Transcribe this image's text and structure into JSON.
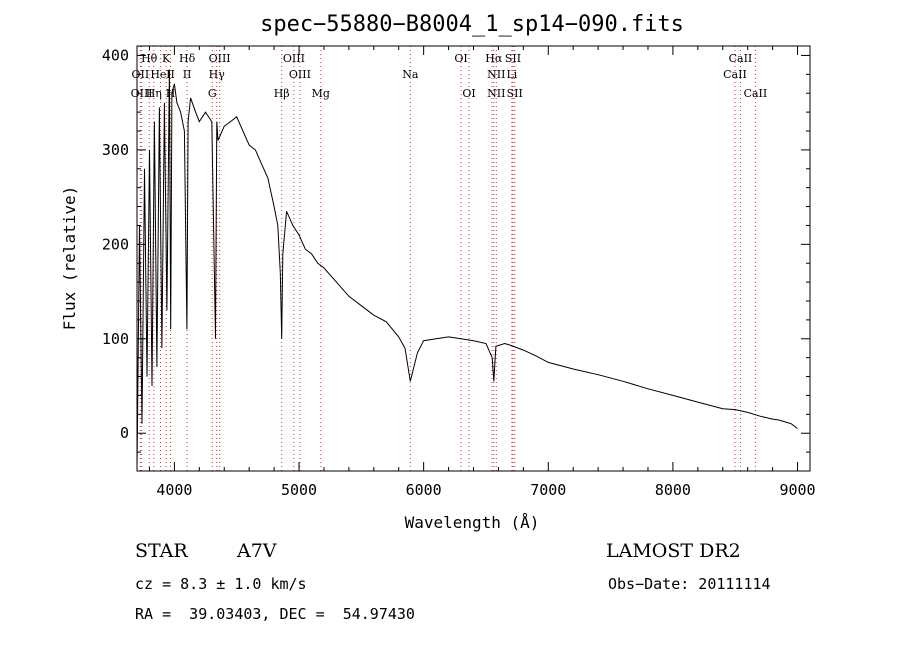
{
  "chart_data": {
    "type": "line",
    "title": "spec−55880−B8004_1_sp14−090.fits",
    "xlabel": "Wavelength (Å)",
    "ylabel": "Flux (relative)",
    "xlim": [
      3700,
      9100
    ],
    "ylim": [
      -40,
      410
    ],
    "x_ticks": [
      4000,
      5000,
      6000,
      7000,
      8000,
      9000
    ],
    "y_ticks": [
      0,
      100,
      200,
      300,
      400
    ],
    "series": [
      {
        "x": [
          3700,
          3720,
          3740,
          3760,
          3780,
          3800,
          3820,
          3840,
          3860,
          3880,
          3900,
          3920,
          3940,
          3960,
          3970,
          3980,
          4000,
          4020,
          4050,
          4080,
          4100,
          4110,
          4130,
          4170,
          4200,
          4250,
          4300,
          4330,
          4340,
          4350,
          4400,
          4450,
          4500,
          4550,
          4600,
          4650,
          4700,
          4750,
          4800,
          4830,
          4850,
          4861,
          4870,
          4900,
          4950,
          5000,
          5050,
          5100,
          5150,
          5200,
          5300,
          5400,
          5500,
          5600,
          5700,
          5800,
          5850,
          5893,
          5950,
          6000,
          6100,
          6200,
          6300,
          6400,
          6500,
          6550,
          6563,
          6580,
          6650,
          6700,
          6800,
          6900,
          7000,
          7200,
          7400,
          7600,
          7800,
          8000,
          8200,
          8400,
          8500,
          8600,
          8700,
          8800,
          8850,
          8900,
          8950,
          9000
        ],
        "y": [
          -40,
          220,
          10,
          280,
          60,
          300,
          50,
          330,
          70,
          345,
          90,
          350,
          130,
          385,
          110,
          360,
          370,
          350,
          340,
          320,
          110,
          330,
          355,
          340,
          330,
          340,
          330,
          100,
          330,
          310,
          325,
          330,
          335,
          320,
          305,
          300,
          285,
          270,
          240,
          220,
          170,
          100,
          190,
          235,
          220,
          210,
          195,
          190,
          180,
          175,
          160,
          145,
          135,
          125,
          118,
          102,
          90,
          55,
          85,
          98,
          100,
          102,
          100,
          98,
          95,
          80,
          55,
          92,
          95,
          93,
          88,
          82,
          75,
          68,
          62,
          55,
          47,
          40,
          33,
          26,
          25,
          22,
          18,
          15,
          14,
          12,
          10,
          5
        ]
      }
    ],
    "annotations": [
      {
        "text": "Hθ",
        "wl": 3798,
        "row": 1
      },
      {
        "text": "OII",
        "wl": 3727,
        "row": 2
      },
      {
        "text": "OIII",
        "wl": 3737,
        "row": 3
      },
      {
        "text": "K",
        "wl": 3934,
        "row": 1
      },
      {
        "text": "HeI",
        "wl": 3889,
        "row": 2
      },
      {
        "text": "Hη",
        "wl": 3835,
        "row": 3
      },
      {
        "text": "II",
        "wl": 3969,
        "row": 2
      },
      {
        "text": "H",
        "wl": 3969,
        "row": 3
      },
      {
        "text": "Hδ",
        "wl": 4102,
        "row": 1
      },
      {
        "text": "II",
        "wl": 4102,
        "row": 2
      },
      {
        "text": "OIII",
        "wl": 4363,
        "row": 1
      },
      {
        "text": "Hγ",
        "wl": 4340,
        "row": 2
      },
      {
        "text": "G",
        "wl": 4304,
        "row": 3
      },
      {
        "text": "Hβ",
        "wl": 4861,
        "row": 3
      },
      {
        "text": "OIII",
        "wl": 4959,
        "row": 1
      },
      {
        "text": "OIII",
        "wl": 5007,
        "row": 2
      },
      {
        "text": "Mg",
        "wl": 5175,
        "row": 3
      },
      {
        "text": "Na",
        "wl": 5893,
        "row": 2
      },
      {
        "text": "OI",
        "wl": 6300,
        "row": 1
      },
      {
        "text": "OI",
        "wl": 6364,
        "row": 3
      },
      {
        "text": "Hα",
        "wl": 6563,
        "row": 1
      },
      {
        "text": "SII",
        "wl": 6717,
        "row": 1
      },
      {
        "text": "NII",
        "wl": 6583,
        "row": 2
      },
      {
        "text": "Li",
        "wl": 6708,
        "row": 2
      },
      {
        "text": "NII",
        "wl": 6583,
        "row": 3
      },
      {
        "text": "SII",
        "wl": 6731,
        "row": 3
      },
      {
        "text": "CaII",
        "wl": 8542,
        "row": 1
      },
      {
        "text": "CaII",
        "wl": 8498,
        "row": 2
      },
      {
        "text": "CaII",
        "wl": 8662,
        "row": 3
      }
    ],
    "line_markers": [
      3727,
      3737,
      3798,
      3835,
      3889,
      3934,
      3969,
      4102,
      4304,
      4340,
      4363,
      4861,
      4959,
      5007,
      5175,
      5893,
      6300,
      6364,
      6548,
      6563,
      6583,
      6708,
      6717,
      6731,
      8498,
      8542,
      8662
    ],
    "line_marker_color": "#cc3333",
    "grid": false
  },
  "info": {
    "object": "STAR",
    "class": "A7V",
    "survey": "LAMOST DR2",
    "cz": "cz = 8.3 ± 1.0 km/s",
    "obsdate": "Obs−Date: 20111114",
    "coords": "RA =  39.03403, DEC =  54.97430"
  }
}
